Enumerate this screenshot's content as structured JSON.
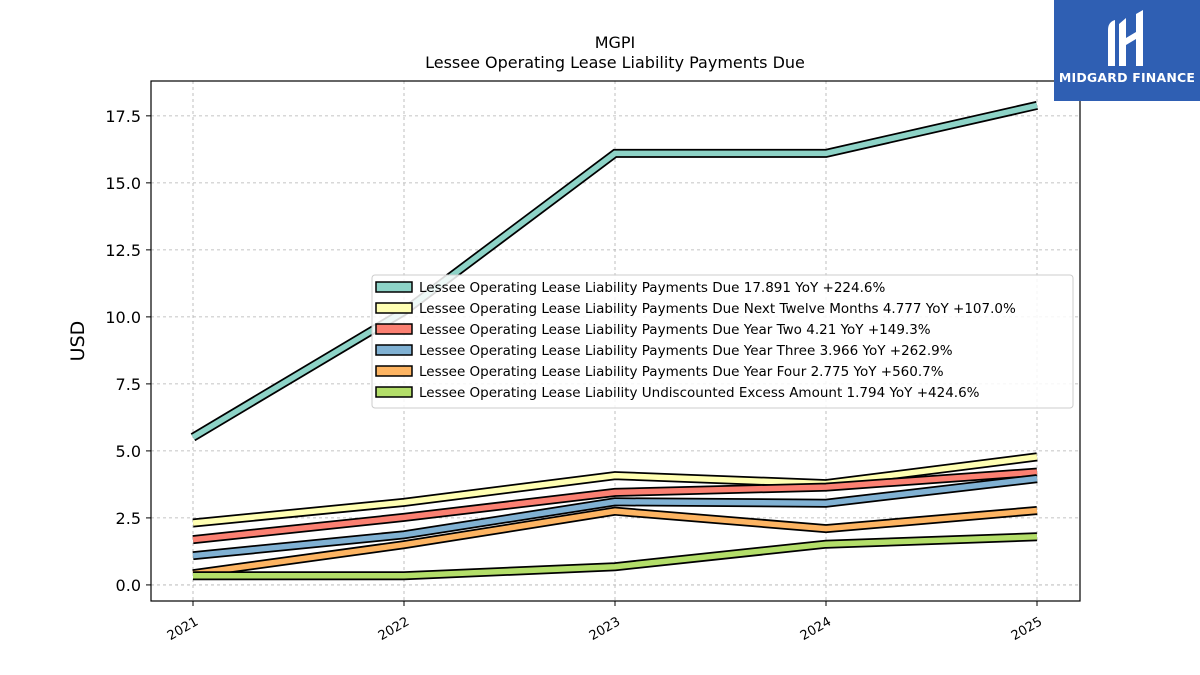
{
  "logo": {
    "text": "MIDGARD FINANCE",
    "bg_color": "#2f5fb3"
  },
  "chart_data": {
    "type": "line",
    "title": "MGPI",
    "subtitle": "Lessee Operating Lease Liability Payments Due",
    "xlabel": "",
    "ylabel": "USD",
    "x": [
      "2021",
      "2022",
      "2023",
      "2024",
      "2025"
    ],
    "ylim": [
      -0.6,
      18.8
    ],
    "yticks": [
      "0.0",
      "2.5",
      "5.0",
      "7.5",
      "10.0",
      "12.5",
      "15.0",
      "17.5"
    ],
    "grid": true,
    "legend_position": "center-right",
    "series": [
      {
        "name": "Lessee Operating Lease Liability Payments Due  17.891 YoY +224.6%",
        "color": "#8dd3c7",
        "values": [
          5.51,
          10.2,
          16.1,
          16.1,
          17.891
        ]
      },
      {
        "name": "Lessee Operating Lease Liability Payments Due Next Twelve Months  4.777 YoY +107.0%",
        "color": "#ffffb3",
        "values": [
          2.31,
          3.08,
          4.08,
          3.78,
          4.777
        ]
      },
      {
        "name": "Lessee Operating Lease Liability Payments Due Year Two  4.21 YoY +149.3%",
        "color": "#fb8072",
        "values": [
          1.69,
          2.52,
          3.45,
          3.65,
          4.21
        ]
      },
      {
        "name": "Lessee Operating Lease Liability Payments Due Year Three  3.966 YoY +262.9%",
        "color": "#80b1d3",
        "values": [
          1.09,
          1.87,
          3.1,
          3.05,
          3.966
        ]
      },
      {
        "name": "Lessee Operating Lease Liability Payments Due Year Four  2.775 YoY +560.7%",
        "color": "#fdb462",
        "values": [
          0.42,
          1.5,
          2.75,
          2.1,
          2.775
        ]
      },
      {
        "name": "Lessee Operating Lease Liability Undiscounted Excess Amount  1.794 YoY +424.6%",
        "color": "#b3de69",
        "values": [
          0.34,
          0.34,
          0.68,
          1.52,
          1.794
        ]
      }
    ]
  }
}
